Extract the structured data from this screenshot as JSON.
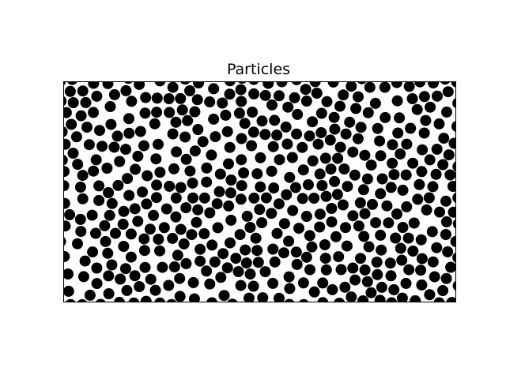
{
  "chart_data": {
    "type": "scatter",
    "title": "Particles",
    "xlabel": "",
    "ylabel": "",
    "xlim": [
      0,
      1
    ],
    "ylim": [
      0,
      1
    ],
    "aspect": "equal",
    "axis_ticks": false,
    "grid": false,
    "marker": "circle",
    "marker_color": "#000000",
    "particle_count": 484
  }
}
